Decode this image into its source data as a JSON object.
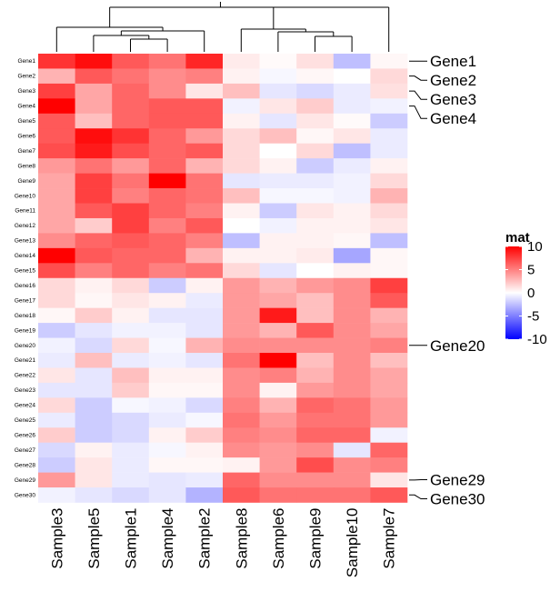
{
  "chart_data": {
    "type": "heatmap",
    "title": "",
    "legend_title": "mat",
    "legend_ticks": [
      10,
      5,
      0,
      -5,
      -10
    ],
    "color_scale": {
      "min": -10,
      "mid": 0,
      "max": 10,
      "low_color": "#0000ff",
      "mid_color": "#ffffff",
      "high_color": "#ff0000"
    },
    "columns": [
      "Sample3",
      "Sample5",
      "Sample1",
      "Sample4",
      "Sample2",
      "Sample8",
      "Sample6",
      "Sample9",
      "Sample10",
      "Sample7"
    ],
    "rows": [
      "Gene1",
      "Gene2",
      "Gene3",
      "Gene4",
      "Gene5",
      "Gene6",
      "Gene7",
      "Gene8",
      "Gene9",
      "Gene10",
      "Gene11",
      "Gene12",
      "Gene13",
      "Gene14",
      "Gene15",
      "Gene16",
      "Gene17",
      "Gene18",
      "Gene19",
      "Gene20",
      "Gene21",
      "Gene22",
      "Gene23",
      "Gene24",
      "Gene25",
      "Gene26",
      "Gene27",
      "Gene28",
      "Gene29",
      "Gene30"
    ],
    "values": [
      [
        8.0,
        9.5,
        6.5,
        5.5,
        8.5,
        0.8,
        0.2,
        1.2,
        -2.5,
        0.3
      ],
      [
        3.0,
        6.5,
        5.5,
        4.5,
        5.0,
        0.5,
        -0.3,
        0.3,
        0.0,
        1.5
      ],
      [
        7.5,
        3.5,
        6.0,
        4.5,
        1.0,
        2.5,
        -1.0,
        -1.5,
        -0.8,
        1.2
      ],
      [
        10.0,
        3.5,
        6.0,
        6.5,
        6.5,
        -0.5,
        1.0,
        2.0,
        -0.8,
        -0.5
      ],
      [
        6.5,
        2.5,
        6.0,
        6.5,
        6.5,
        0.5,
        -1.0,
        1.0,
        0.2,
        -2.0
      ],
      [
        6.5,
        9.5,
        8.0,
        6.0,
        4.0,
        1.5,
        2.5,
        0.3,
        1.0,
        -0.8
      ],
      [
        7.0,
        9.0,
        7.0,
        6.0,
        6.5,
        1.5,
        0.0,
        1.5,
        -2.5,
        -0.8
      ],
      [
        4.0,
        5.5,
        4.0,
        6.0,
        3.0,
        1.5,
        0.5,
        -2.0,
        -0.8,
        0.5
      ],
      [
        3.5,
        7.5,
        5.5,
        10.0,
        5.5,
        -1.0,
        -0.8,
        -0.8,
        -0.5,
        1.5
      ],
      [
        3.5,
        7.5,
        5.0,
        6.0,
        5.5,
        2.5,
        -0.3,
        -0.3,
        -0.5,
        3.0
      ],
      [
        3.5,
        6.5,
        7.5,
        6.0,
        5.0,
        0.5,
        -2.0,
        1.0,
        0.5,
        1.5
      ],
      [
        3.5,
        2.0,
        7.5,
        5.0,
        6.5,
        0.0,
        -0.5,
        0.5,
        0.5,
        1.0
      ],
      [
        4.5,
        6.0,
        6.5,
        6.0,
        5.0,
        -2.5,
        0.5,
        0.5,
        0.3,
        -2.5
      ],
      [
        10.0,
        6.5,
        6.0,
        6.0,
        3.0,
        0.5,
        0.5,
        0.8,
        -3.5,
        0.3
      ],
      [
        7.0,
        5.0,
        6.0,
        5.0,
        5.5,
        1.5,
        -1.0,
        0.0,
        0.5,
        0.3
      ],
      [
        1.5,
        0.5,
        1.5,
        -2.0,
        0.5,
        4.0,
        3.0,
        4.0,
        4.5,
        7.5
      ],
      [
        1.5,
        0.3,
        1.0,
        0.5,
        -0.8,
        4.0,
        3.5,
        2.5,
        4.5,
        6.5
      ],
      [
        0.3,
        2.0,
        0.5,
        -1.0,
        -1.0,
        4.0,
        9.0,
        2.5,
        4.5,
        3.0
      ],
      [
        -2.0,
        -1.0,
        -0.5,
        -0.5,
        -1.0,
        4.0,
        3.0,
        6.5,
        4.5,
        3.5
      ],
      [
        -0.5,
        -1.5,
        1.5,
        -0.3,
        3.0,
        4.5,
        4.5,
        4.5,
        4.5,
        5.0
      ],
      [
        -0.8,
        2.5,
        -0.8,
        -0.5,
        -1.0,
        5.5,
        10.0,
        2.5,
        4.5,
        2.5
      ],
      [
        1.0,
        -1.0,
        2.5,
        0.5,
        0.5,
        4.5,
        5.0,
        3.0,
        4.5,
        3.5
      ],
      [
        -1.0,
        -1.0,
        2.0,
        0.3,
        0.3,
        4.5,
        0.5,
        4.0,
        4.5,
        3.5
      ],
      [
        1.5,
        -2.0,
        -0.3,
        -0.5,
        -1.5,
        5.0,
        3.0,
        6.0,
        5.5,
        4.0
      ],
      [
        -0.8,
        -2.0,
        -1.5,
        -0.8,
        -0.3,
        5.5,
        4.0,
        5.5,
        5.5,
        4.0
      ],
      [
        2.0,
        -2.0,
        -1.5,
        0.5,
        2.0,
        5.0,
        4.5,
        6.0,
        6.0,
        -0.5
      ],
      [
        -1.5,
        0.5,
        -0.8,
        -0.3,
        0.5,
        4.5,
        4.0,
        4.5,
        -1.0,
        6.0
      ],
      [
        -2.0,
        1.0,
        -0.8,
        0.3,
        0.3,
        0.5,
        4.0,
        7.0,
        4.5,
        5.0
      ],
      [
        4.0,
        1.0,
        -0.8,
        -1.0,
        -0.8,
        6.0,
        4.5,
        4.5,
        4.5,
        1.0
      ],
      [
        -0.5,
        -1.0,
        -1.5,
        -1.0,
        -3.0,
        6.5,
        5.5,
        5.5,
        5.5,
        6.5
      ]
    ],
    "highlighted_rows": [
      "Gene1",
      "Gene2",
      "Gene3",
      "Gene4",
      "Gene20",
      "Gene29",
      "Gene30"
    ],
    "column_dendrogram": {
      "groups": [
        [
          "Sample3",
          "Sample5",
          "Sample1",
          "Sample4",
          "Sample2"
        ],
        [
          "Sample8",
          "Sample6",
          "Sample9",
          "Sample10",
          "Sample7"
        ]
      ]
    }
  }
}
